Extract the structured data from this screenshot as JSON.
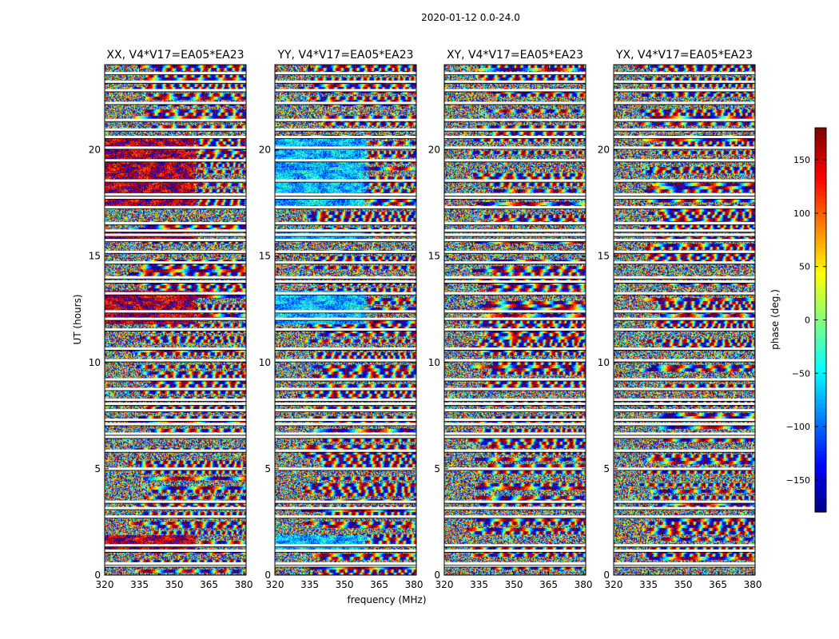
{
  "figure": {
    "suptitle": "2020-01-12 0.0-24.0",
    "xlabel": "frequency (MHz)",
    "ylabel": "UT (hours)"
  },
  "chart_data": {
    "type": "heatmap",
    "x_range": [
      320,
      381
    ],
    "y_range": [
      0,
      24
    ],
    "x_ticks": [
      320,
      335,
      350,
      365,
      380
    ],
    "y_ticks": [
      0,
      5,
      10,
      15,
      20
    ],
    "colormap": "jet",
    "panels": [
      {
        "title": "XX, V4*V17=EA05*EA23",
        "bias_phase": 160,
        "bias_strength": 0.55
      },
      {
        "title": "YY, V4*V17=EA05*EA23",
        "bias_phase": -70,
        "bias_strength": 0.55
      },
      {
        "title": "XY, V4*V17=EA05*EA23",
        "bias_phase": 0,
        "bias_strength": 0.0
      },
      {
        "title": "YX, V4*V17=EA05*EA23",
        "bias_phase": 0,
        "bias_strength": 0.0
      }
    ],
    "flagged_gaps_ut": [
      0.45,
      0.55,
      1.15,
      1.4,
      2.75,
      3.15,
      3.45,
      5.0,
      5.85,
      6.5,
      6.65,
      7.1,
      7.3,
      7.75,
      8.05,
      8.25,
      8.75,
      9.2,
      10.1,
      10.65,
      11.55,
      12.05,
      12.4,
      13.25,
      13.8,
      14.0,
      14.7,
      15.2,
      15.75,
      16.0,
      16.2,
      16.55,
      17.3,
      17.75,
      17.9,
      18.55,
      19.5,
      20.1,
      20.6,
      20.95,
      21.4,
      22.2,
      22.8,
      23.2,
      23.6
    ],
    "colorbar": {
      "label": "phase (deg.)",
      "range": [
        -180,
        180
      ],
      "ticks": [
        150,
        100,
        50,
        0,
        -50,
        -100,
        -150
      ],
      "tick_labels": [
        "150",
        "100",
        "50",
        "0",
        "−50",
        "−100",
        "−150"
      ]
    }
  }
}
